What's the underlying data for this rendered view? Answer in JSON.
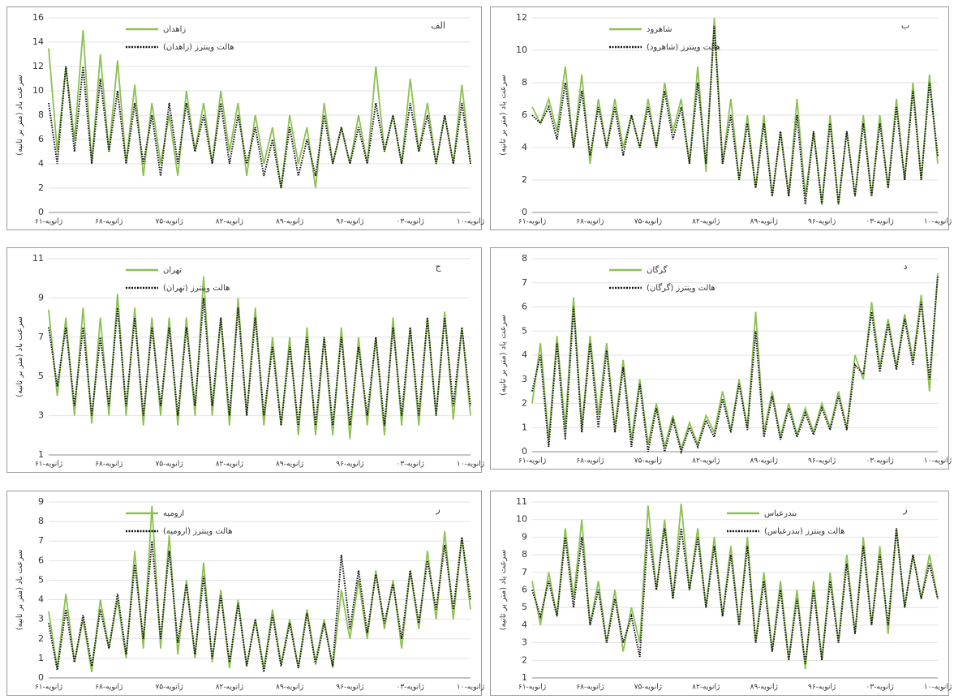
{
  "chart_data": [
    {
      "type": "line",
      "panel_label": "الف",
      "y_label": "سرعت باد (متر بر ثانیه)",
      "ylim": [
        0,
        16
      ],
      "yticks": [
        0,
        2,
        4,
        6,
        8,
        10,
        12,
        14,
        16
      ],
      "grid": true,
      "legend": "top-left",
      "categories": [
        "ژانویه-۶۱",
        null,
        null,
        null,
        null,
        null,
        null,
        "ژانویه-۶۸",
        null,
        null,
        null,
        null,
        null,
        null,
        "ژانویه-۷۵",
        null,
        null,
        null,
        null,
        null,
        null,
        "ژانویه-۸۲",
        null,
        null,
        null,
        null,
        null,
        null,
        "ژانویه-۸۹",
        null,
        null,
        null,
        null,
        null,
        null,
        "ژانویه-۹۶",
        null,
        null,
        null,
        null,
        null,
        null,
        "ژانویه-۰۳",
        null,
        null,
        null,
        null,
        null,
        null,
        "ژانویه-۱۰"
      ],
      "series": [
        {
          "name": "زاهدان",
          "color": "#8cc152",
          "style": "solid",
          "values": [
            13.5,
            5,
            12,
            6,
            15,
            4,
            13,
            5,
            12.5,
            4,
            10.5,
            3,
            9,
            4,
            8,
            3,
            10,
            5,
            9,
            4,
            10,
            5,
            9,
            3,
            8,
            4,
            7,
            2,
            8,
            4,
            7,
            2,
            9,
            4,
            7,
            4,
            8,
            4,
            12,
            5,
            8,
            4,
            11,
            5,
            9,
            4,
            8,
            4,
            10.5,
            4
          ]
        },
        {
          "name": "هالت وینترز (زاهدان)",
          "color": "#111111",
          "style": "dotted",
          "values": [
            9,
            4,
            12,
            5,
            12,
            4,
            11,
            5,
            10,
            4,
            9,
            4,
            8,
            3,
            9,
            4,
            9,
            5,
            8,
            4,
            9,
            4,
            8,
            4,
            7,
            3,
            6,
            2,
            7,
            3,
            6,
            3,
            8,
            4,
            7,
            4,
            7,
            4,
            9,
            5,
            8,
            4,
            9,
            5,
            8,
            4,
            8,
            4,
            9,
            4
          ]
        }
      ]
    },
    {
      "type": "line",
      "panel_label": "ب",
      "y_label": "سرعت باد (متر بر ثانیه)",
      "ylim": [
        0,
        12
      ],
      "yticks": [
        0,
        2,
        4,
        6,
        8,
        10,
        12
      ],
      "grid": true,
      "legend": "top-left",
      "categories": [
        "ژانویه-۶۱",
        null,
        null,
        null,
        null,
        null,
        null,
        "ژانویه-۶۸",
        null,
        null,
        null,
        null,
        null,
        null,
        "ژانویه-۷۵",
        null,
        null,
        null,
        null,
        null,
        null,
        "ژانویه-۸۲",
        null,
        null,
        null,
        null,
        null,
        null,
        "ژانویه-۸۹",
        null,
        null,
        null,
        null,
        null,
        null,
        "ژانویه-۹۶",
        null,
        null,
        null,
        null,
        null,
        null,
        "ژانویه-۰۳",
        null,
        null,
        null,
        null,
        null,
        null,
        "ژانویه-۱۰"
      ],
      "series": [
        {
          "name": "شاهرود",
          "color": "#8cc152",
          "style": "solid",
          "values": [
            6.5,
            5.5,
            7,
            5,
            9,
            4,
            8.5,
            3,
            7,
            4,
            7,
            4,
            6,
            4,
            7,
            4,
            8,
            5,
            7,
            3,
            9,
            2.5,
            12,
            3,
            7,
            2,
            6,
            1.5,
            6,
            1,
            5,
            1,
            7,
            1,
            5,
            0.5,
            6,
            0.5,
            5,
            1,
            6,
            1,
            6,
            1.5,
            7,
            2,
            8,
            2,
            8.5,
            3
          ]
        },
        {
          "name": "هالت وینترز (شاهرود)",
          "color": "#111111",
          "style": "dotted",
          "values": [
            6,
            5.5,
            6.5,
            4.5,
            8,
            4,
            7.5,
            3.5,
            6.5,
            4,
            6.5,
            3.5,
            6,
            4,
            6.5,
            4,
            7.5,
            4.5,
            6.5,
            3,
            8,
            3,
            11.5,
            3,
            6,
            2,
            5.5,
            1.5,
            5.5,
            1,
            5,
            1,
            6,
            0.5,
            5,
            0.5,
            5.5,
            0.5,
            5,
            1,
            5.5,
            1,
            5.5,
            1.5,
            6.5,
            2,
            7.5,
            2,
            8,
            3.5
          ]
        }
      ]
    },
    {
      "type": "line",
      "panel_label": "ج",
      "y_label": "سرعت باد (متر بر ثانیه)",
      "ylim": [
        1,
        11
      ],
      "yticks": [
        1,
        3,
        5,
        7,
        9,
        11
      ],
      "grid": true,
      "legend": "top-left",
      "categories": [
        "ژانویه-۶۱",
        null,
        null,
        null,
        null,
        null,
        null,
        "ژانویه-۶۸",
        null,
        null,
        null,
        null,
        null,
        null,
        "ژانویه-۷۵",
        null,
        null,
        null,
        null,
        null,
        null,
        "ژانویه-۸۲",
        null,
        null,
        null,
        null,
        null,
        null,
        "ژانویه-۸۹",
        null,
        null,
        null,
        null,
        null,
        null,
        "ژانویه-۹۶",
        null,
        null,
        null,
        null,
        null,
        null,
        "ژانویه-۰۳",
        null,
        null,
        null,
        null,
        null,
        null,
        "ژانویه-۱۰"
      ],
      "series": [
        {
          "name": "تهران",
          "color": "#8cc152",
          "style": "solid",
          "values": [
            8.4,
            4,
            8,
            3,
            8.5,
            2.6,
            8,
            3,
            9.2,
            3,
            8.5,
            2.5,
            8,
            3,
            8,
            2.5,
            8,
            3,
            10.1,
            3,
            8,
            2.5,
            9,
            3,
            8.5,
            2.5,
            7,
            2.5,
            7,
            2,
            7.5,
            2,
            7,
            2,
            7.5,
            1.8,
            7,
            2.5,
            7,
            2,
            8,
            2.5,
            7.5,
            2.5,
            8,
            3,
            8.3,
            2.8,
            7.5,
            3
          ]
        },
        {
          "name": "هالت وینترز (تهران)",
          "color": "#111111",
          "style": "dotted",
          "values": [
            7.5,
            4.5,
            7.5,
            3.5,
            7.5,
            3,
            7,
            3.5,
            8.5,
            3.5,
            8,
            3,
            7.5,
            3.5,
            7.5,
            3,
            7.5,
            3.5,
            9,
            3.5,
            8,
            3,
            8.5,
            3,
            8,
            3,
            6.5,
            2.5,
            6.5,
            2.5,
            7,
            2.5,
            7,
            2.5,
            7,
            2.5,
            6.5,
            3,
            7,
            2.5,
            7.5,
            3,
            7.5,
            3,
            8,
            3,
            8,
            3.5,
            7.5,
            3.5
          ]
        }
      ]
    },
    {
      "type": "line",
      "panel_label": "د",
      "y_label": "سرعت باد (متر بر ثانیه)",
      "ylim": [
        0,
        8
      ],
      "yticks": [
        0,
        1,
        2,
        3,
        4,
        5,
        6,
        7,
        8
      ],
      "grid": true,
      "legend": "top-left",
      "categories": [
        "ژانویه-۶۱",
        null,
        null,
        null,
        null,
        null,
        null,
        "ژانویه-۶۸",
        null,
        null,
        null,
        null,
        null,
        null,
        "ژانویه-۷۵",
        null,
        null,
        null,
        null,
        null,
        null,
        "ژانویه-۸۲",
        null,
        null,
        null,
        null,
        null,
        null,
        "ژانویه-۸۹",
        null,
        null,
        null,
        null,
        null,
        null,
        "ژانویه-۹۶",
        null,
        null,
        null,
        null,
        null,
        null,
        "ژانویه-۰۳",
        null,
        null,
        null,
        null,
        null,
        null,
        "ژانویه-۱۰"
      ],
      "series": [
        {
          "name": "گرگان",
          "color": "#8cc152",
          "style": "solid",
          "values": [
            2,
            4.5,
            0.5,
            4.8,
            1,
            6.4,
            1,
            4.8,
            1.5,
            4.5,
            1,
            3.8,
            0.5,
            3,
            0.3,
            2,
            0.2,
            1.5,
            0.1,
            1.2,
            0.3,
            1.5,
            0.8,
            2.5,
            0.9,
            3,
            1,
            5.8,
            0.8,
            2.5,
            0.6,
            2,
            0.7,
            1.8,
            0.8,
            2,
            1,
            2.5,
            1,
            4,
            3,
            6.2,
            3.5,
            5.5,
            3.5,
            5.7,
            3.8,
            6.5,
            2.5,
            7.4
          ]
        },
        {
          "name": "هالت وینترز (گرگان)",
          "color": "#111111",
          "style": "dotted",
          "values": [
            2.5,
            4,
            0.2,
            4.5,
            0.5,
            6,
            0.8,
            4.5,
            1,
            4.2,
            0.8,
            3.5,
            0.2,
            2.8,
            0,
            1.8,
            0,
            1.3,
            0,
            1,
            0.2,
            1.3,
            0.6,
            2.2,
            0.8,
            2.8,
            0.9,
            5,
            0.6,
            2.3,
            0.5,
            1.8,
            0.6,
            1.6,
            0.7,
            1.8,
            0.9,
            2.3,
            0.9,
            3.6,
            3.2,
            5.8,
            3.3,
            5.3,
            3.4,
            5.5,
            3.6,
            6.2,
            3,
            7.3
          ]
        }
      ]
    },
    {
      "type": "line",
      "panel_label": "ر",
      "y_label": "سرعت باد (متر بر ثانیه)",
      "ylim": [
        0,
        9
      ],
      "yticks": [
        0,
        1,
        2,
        3,
        4,
        5,
        6,
        7,
        8,
        9
      ],
      "grid": true,
      "legend": "top-left",
      "categories": [
        "ژانویه-۶۱",
        null,
        null,
        null,
        null,
        null,
        null,
        "ژانویه-۶۸",
        null,
        null,
        null,
        null,
        null,
        null,
        "ژانویه-۷۵",
        null,
        null,
        null,
        null,
        null,
        null,
        "ژانویه-۸۲",
        null,
        null,
        null,
        null,
        null,
        null,
        "ژانویه-۸۹",
        null,
        null,
        null,
        null,
        null,
        null,
        "ژانویه-۹۶",
        null,
        null,
        null,
        null,
        null,
        null,
        "ژانویه-۰۳",
        null,
        null,
        null,
        null,
        null,
        null,
        "ژانویه-۱۰"
      ],
      "series": [
        {
          "name": "ارومیه",
          "color": "#8cc152",
          "style": "solid",
          "values": [
            3.4,
            0.5,
            4.3,
            0.8,
            3,
            0.3,
            4,
            1.5,
            4,
            1,
            6.5,
            1.5,
            8.8,
            1.5,
            7.3,
            1.2,
            5,
            1,
            5.9,
            0.8,
            4.5,
            0.5,
            4,
            0.6,
            3,
            0.5,
            3.5,
            0.7,
            3,
            0.5,
            3.5,
            0.8,
            3,
            0.5,
            4.5,
            2,
            5,
            2,
            5.5,
            2.5,
            5,
            1.5,
            5.5,
            2.5,
            6.5,
            3,
            7.5,
            3,
            7.2,
            3.5
          ]
        },
        {
          "name": "هالت وینترز (ارومیه)",
          "color": "#111111",
          "style": "dotted",
          "values": [
            2.8,
            0.4,
            3.5,
            0.8,
            3.2,
            0.6,
            3.5,
            1.5,
            4.3,
            1.2,
            5.8,
            2,
            7,
            2,
            6.5,
            1.8,
            4.8,
            1.2,
            5.2,
            1,
            4.2,
            0.8,
            3.8,
            0.6,
            3,
            0.3,
            3.2,
            0.6,
            2.8,
            0.5,
            3.3,
            0.7,
            2.8,
            0.6,
            6.3,
            2.5,
            5.5,
            2.3,
            5.3,
            2.8,
            4.8,
            2,
            5.5,
            2.8,
            6,
            3.5,
            6.8,
            3.5,
            7.2,
            4
          ]
        }
      ]
    },
    {
      "type": "line",
      "panel_label": "ز",
      "y_label": "سرعت باد (متر بر ثانیه)",
      "ylim": [
        1,
        11
      ],
      "yticks": [
        1,
        2,
        3,
        4,
        5,
        6,
        7,
        8,
        9,
        10,
        11
      ],
      "grid": true,
      "legend": "top-right",
      "categories": [
        "ژانویه-۶۱",
        null,
        null,
        null,
        null,
        null,
        null,
        "ژانویه-۶۸",
        null,
        null,
        null,
        null,
        null,
        null,
        "ژانویه-۷۵",
        null,
        null,
        null,
        null,
        null,
        null,
        "ژانویه-۸۲",
        null,
        null,
        null,
        null,
        null,
        null,
        "ژانویه-۸۹",
        null,
        null,
        null,
        null,
        null,
        null,
        "ژانویه-۹۶",
        null,
        null,
        null,
        null,
        null,
        null,
        "ژانویه-۰۳",
        null,
        null,
        null,
        null,
        null,
        null,
        "ژانویه-۱۰"
      ],
      "series": [
        {
          "name": "بندرعباس",
          "color": "#8cc152",
          "style": "solid",
          "values": [
            6.5,
            4,
            7,
            4.5,
            9.5,
            5.5,
            10,
            4,
            6.5,
            3,
            6,
            2.5,
            5,
            3,
            10.8,
            6,
            10,
            5.5,
            10.9,
            6,
            9.5,
            5,
            9,
            4.5,
            8.5,
            4,
            9,
            3,
            7,
            2.5,
            6.5,
            2,
            6,
            1.5,
            6.5,
            2,
            7,
            3,
            8,
            3.5,
            9,
            4,
            8.5,
            3.5,
            9.5,
            5,
            8,
            5.5,
            8,
            5.5
          ]
        },
        {
          "name": "هالت وینترز (بندرعباس)",
          "color": "#111111",
          "style": "dotted",
          "values": [
            6,
            4.5,
            6.5,
            4.5,
            9,
            5,
            9,
            4,
            6,
            3,
            5.5,
            3,
            4.5,
            2.2,
            9.5,
            6,
            9.5,
            5.5,
            9.5,
            6,
            9,
            5,
            8.5,
            4.5,
            8,
            4,
            8.5,
            3,
            6.5,
            2.5,
            6,
            2,
            5.5,
            1.8,
            6,
            2,
            6.5,
            3,
            7.5,
            3.5,
            8.5,
            4,
            8,
            4,
            9.5,
            5,
            8,
            5.5,
            7.5,
            5.5
          ]
        }
      ]
    }
  ]
}
